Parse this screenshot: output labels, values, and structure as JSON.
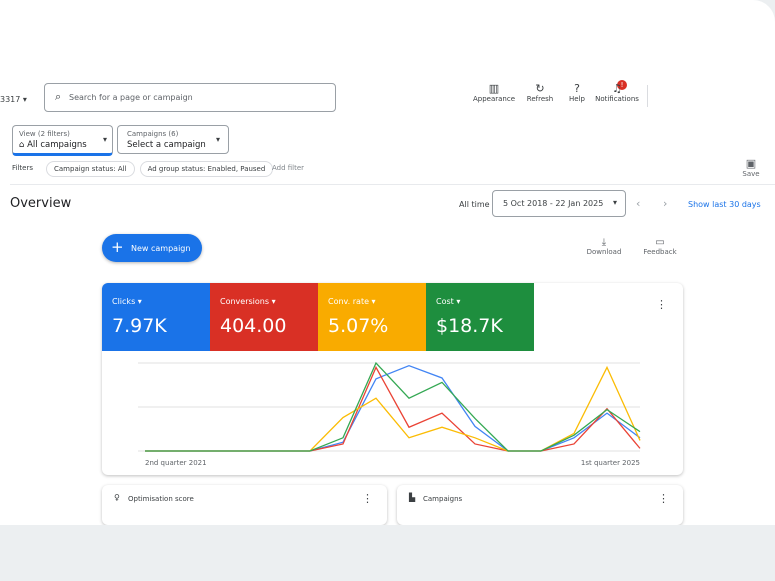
{
  "header": {
    "account": "3317",
    "search_placeholder": "Search for a page or campaign",
    "actions": [
      "Appearance",
      "Refresh",
      "Help",
      "Notifications"
    ],
    "notification_badge": "!"
  },
  "filters": {
    "view_label": "View (2 filters)",
    "view_value": "All campaigns",
    "campaigns_label": "Campaigns (6)",
    "campaigns_value": "Select a campaign",
    "filters_label": "Filters",
    "chips": [
      "Campaign status: All",
      "Ad group status: Enabled, Paused"
    ],
    "add_filter": "Add filter",
    "save": "Save"
  },
  "overview": {
    "title": "Overview",
    "all_time": "All time",
    "date_range": "5 Oct 2018 - 22 Jan 2025",
    "show_last": "Show last 30 days",
    "new_campaign": "New campaign",
    "download": "Download",
    "feedback": "Feedback"
  },
  "metrics": [
    {
      "label": "Clicks",
      "value": "7.97K",
      "color": "#1a73e8"
    },
    {
      "label": "Conversions",
      "value": "404.00",
      "color": "#d93025"
    },
    {
      "label": "Conv. rate",
      "value": "5.07%",
      "color": "#f9ab00"
    },
    {
      "label": "Cost",
      "value": "$18.7K",
      "color": "#1e8e3e"
    }
  ],
  "chart_data": {
    "type": "line",
    "x": [
      0,
      1,
      2,
      3,
      4,
      5,
      6,
      7,
      8,
      9,
      10,
      11,
      12,
      13,
      14,
      15
    ],
    "x_labels": [
      "2nd quarter 2021",
      "1st quarter 2025"
    ],
    "ylim": [
      0,
      100
    ],
    "xlim": [
      0,
      15
    ],
    "series": [
      {
        "name": "Clicks",
        "color": "#4285f4",
        "values": [
          0,
          0,
          0,
          0,
          0,
          0,
          10,
          82,
          97,
          83,
          28,
          0,
          0,
          15,
          43,
          15
        ]
      },
      {
        "name": "Conversions",
        "color": "#ea4335",
        "values": [
          0,
          0,
          0,
          0,
          0,
          0,
          8,
          95,
          27,
          43,
          8,
          0,
          0,
          8,
          48,
          3
        ]
      },
      {
        "name": "Conv. rate",
        "color": "#fbbc04",
        "values": [
          0,
          0,
          0,
          0,
          0,
          0,
          38,
          60,
          15,
          27,
          15,
          0,
          0,
          20,
          95,
          12
        ]
      },
      {
        "name": "Cost",
        "color": "#34a853",
        "values": [
          0,
          0,
          0,
          0,
          0,
          0,
          15,
          100,
          60,
          78,
          37,
          0,
          0,
          18,
          47,
          22
        ]
      }
    ]
  },
  "cards": [
    "Optimisation score",
    "Campaigns"
  ]
}
